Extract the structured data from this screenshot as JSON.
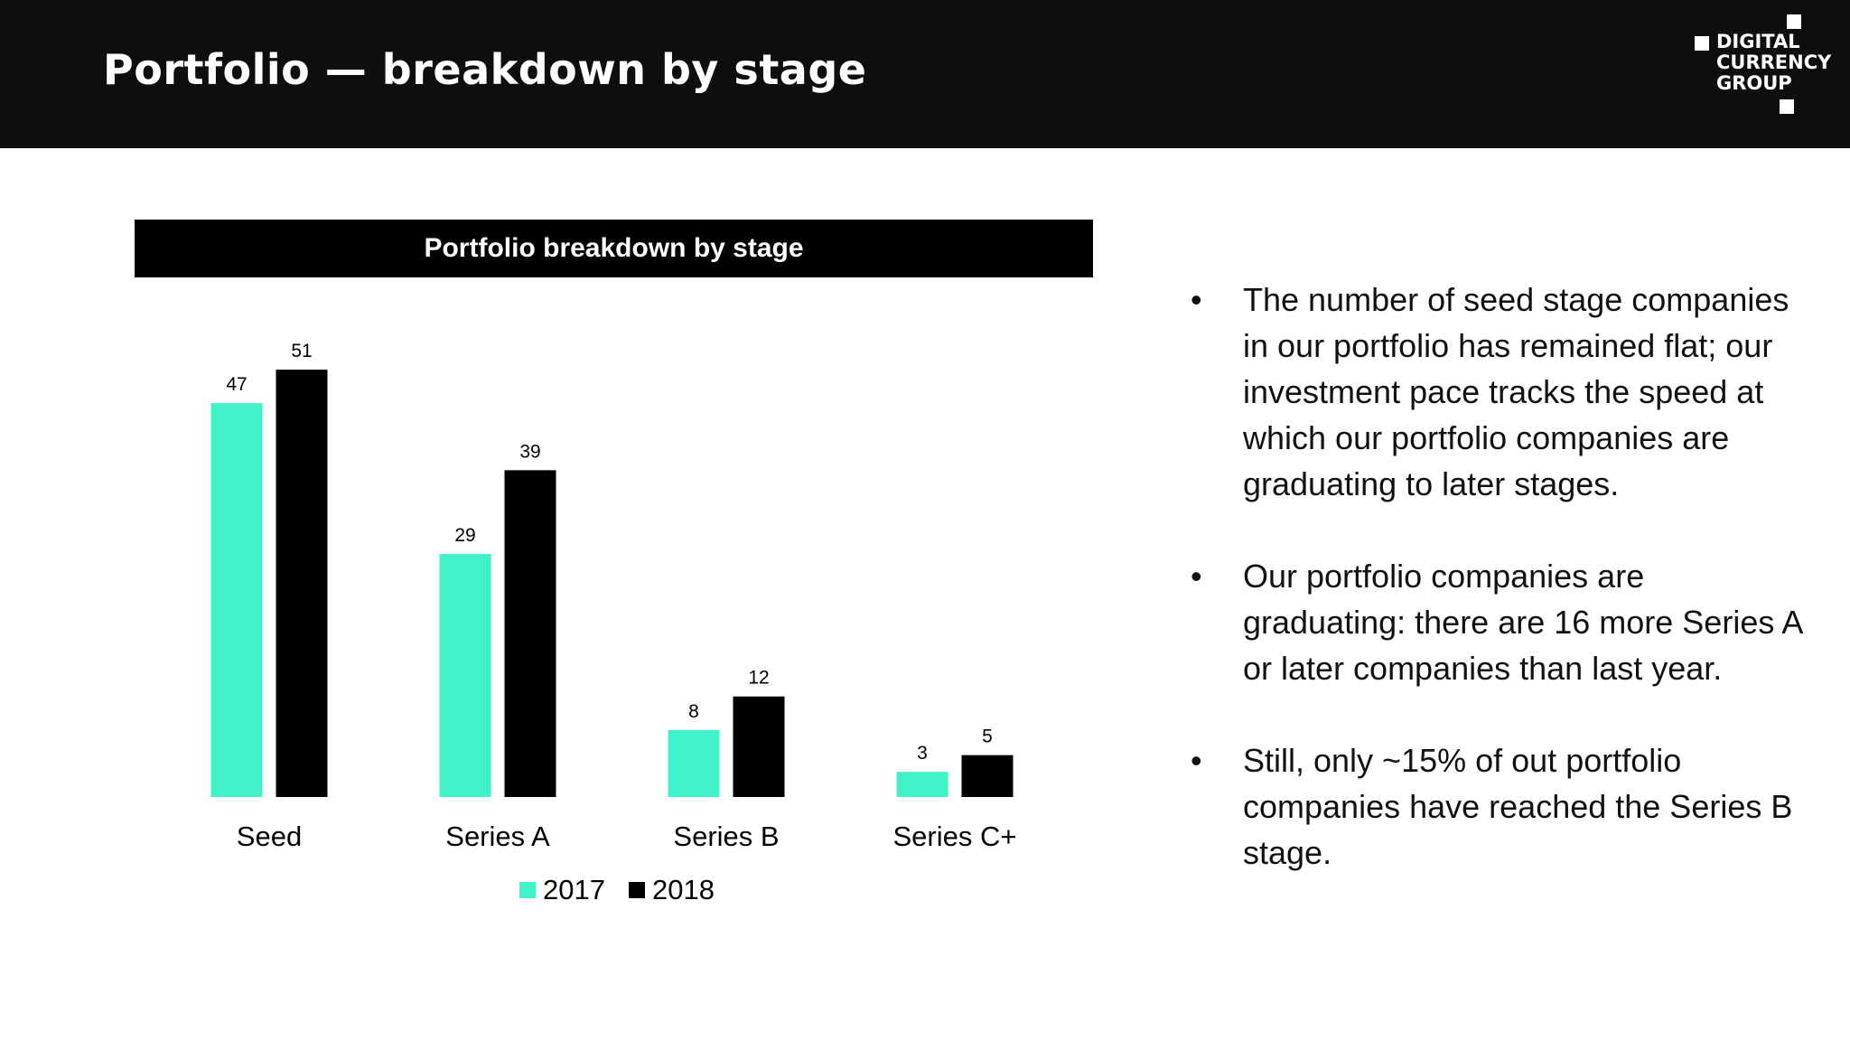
{
  "header": {
    "title": "Portfolio — breakdown by stage",
    "logo_lines": [
      "DIGITAL",
      "CURRENCY",
      "GROUP"
    ]
  },
  "chart_data": {
    "type": "bar",
    "title": "Portfolio breakdown by stage",
    "categories": [
      "Seed",
      "Series A",
      "Series B",
      "Series C+"
    ],
    "series": [
      {
        "name": "2017",
        "color": "#3ff2c8",
        "values": [
          47,
          29,
          8,
          3
        ]
      },
      {
        "name": "2018",
        "color": "#000000",
        "values": [
          51,
          39,
          12,
          5
        ]
      }
    ],
    "ylim": [
      0,
      55
    ],
    "xlabel": "",
    "ylabel": "",
    "legend_position": "bottom"
  },
  "bullets": [
    {
      "text": "The number of seed stage companies in our portfolio has remained flat; our investment pace tracks the speed at which our portfolio companies are graduating to later stages."
    },
    {
      "text": "Our portfolio companies are graduating: there are 16 more Series A or later companies than last year."
    },
    {
      "text": "Still, only ~15% of out portfolio companies have reached the Series B stage."
    }
  ],
  "bullet_glyph": "•"
}
